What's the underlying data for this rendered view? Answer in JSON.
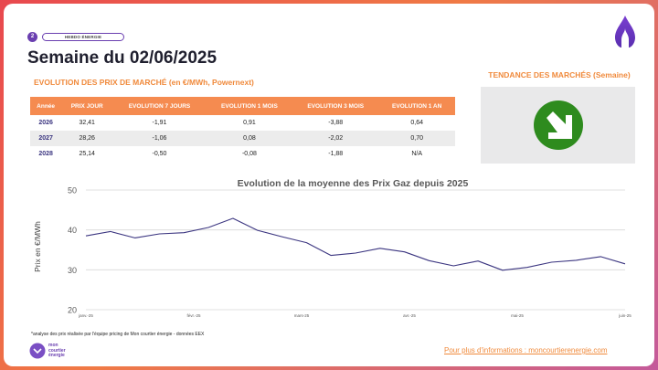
{
  "header": {
    "page_number": "2",
    "tag": "HEBDO ÉNERGIE",
    "title": "Semaine du 02/06/2025",
    "subtitle": "EVOLUTION DES PRIX DE MARCHÉ (en €/MWh, Powernext)"
  },
  "trend": {
    "title": "TENDANCE DES MARCHÉS (Semaine)",
    "icon": "arrow-down-right-icon",
    "color": "#2e8b1e"
  },
  "table": {
    "headers": [
      "Année",
      "PRIX JOUR",
      "EVOLUTION 7 JOURS",
      "EVOLUTION 1 MOIS",
      "EVOLUTION 3 MOIS",
      "EVOLUTION 1 AN"
    ],
    "rows": [
      [
        "2026",
        "32,41",
        "-1,91",
        "0,91",
        "-3,88",
        "0,64"
      ],
      [
        "2027",
        "28,26",
        "-1,06",
        "0,08",
        "-2,02",
        "0,70"
      ],
      [
        "2028",
        "25,14",
        "-0,50",
        "-0,08",
        "-1,88",
        "N/A"
      ]
    ]
  },
  "chart_data": {
    "type": "line",
    "title": "Evolution de la moyenne des Prix Gaz depuis 2025",
    "xlabel": "",
    "ylabel": "Prix en €/MWh",
    "ylim": [
      20,
      50
    ],
    "yticks": [
      20,
      30,
      40,
      50
    ],
    "xtick_labels": [
      "janv.-25",
      "févr.-25",
      "mars-25",
      "avr.-25",
      "mai-25",
      "juin-25"
    ],
    "grid": true,
    "color": "#3b3580",
    "series": [
      {
        "values": [
          38.5,
          39.6,
          38.0,
          39.0,
          39.3,
          40.6,
          42.9,
          39.9,
          38.3,
          36.8,
          33.6,
          34.2,
          35.4,
          34.5,
          32.3,
          31.0,
          32.2,
          29.9,
          30.6,
          31.9,
          32.4,
          33.3,
          31.5
        ]
      }
    ]
  },
  "footer": {
    "footnote": "*analyse des prix réalisée par l'équipe pricing de Mon courtier énergie - données EEX",
    "brand": [
      "mon",
      "courtier",
      "énergie"
    ],
    "link": "Pour plus d'informations : moncourtierenergie.com"
  }
}
